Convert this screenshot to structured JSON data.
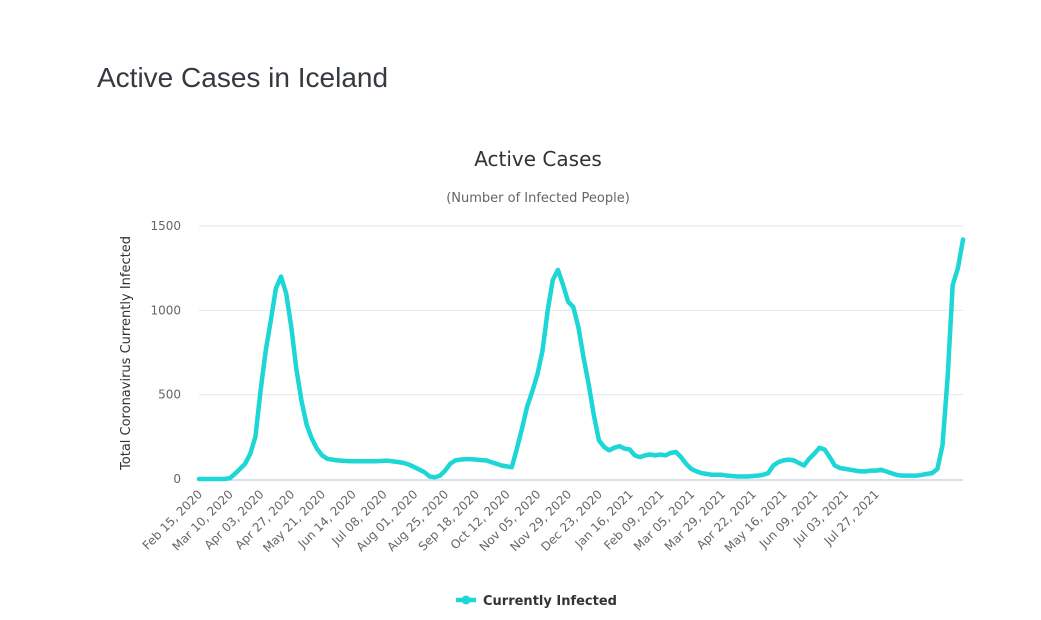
{
  "page": {
    "title": "Active Cases in Iceland"
  },
  "colors": {
    "series": "#1dd6d6",
    "grid": "#e6e6e6",
    "axis": "#ccd6eb",
    "title": "#343a40"
  },
  "chart_data": {
    "type": "line",
    "title": "Active Cases",
    "subtitle": "(Number of Infected People)",
    "xlabel": "",
    "ylabel": "Total Coronavirus Currently Infected",
    "ylim": [
      0,
      1500
    ],
    "yticks": [
      0,
      500,
      1000,
      1500
    ],
    "grid": true,
    "legend_position": "bottom",
    "x_start": "2020-02-15",
    "x_step_days": 4,
    "xtick_labels": [
      "Feb 15, 2020",
      "Mar 10, 2020",
      "Apr 03, 2020",
      "Apr 27, 2020",
      "May 21, 2020",
      "Jun 14, 2020",
      "Jul 08, 2020",
      "Aug 01, 2020",
      "Aug 25, 2020",
      "Sep 18, 2020",
      "Oct 12, 2020",
      "Nov 05, 2020",
      "Nov 29, 2020",
      "Dec 23, 2020",
      "Jan 16, 2021",
      "Feb 09, 2021",
      "Mar 05, 2021",
      "Mar 29, 2021",
      "Apr 22, 2021",
      "May 16, 2021",
      "Jun 09, 2021",
      "Jul 03, 2021",
      "Jul 27, 2021"
    ],
    "xtick_step_days": 24,
    "series": [
      {
        "name": "Currently Infected",
        "values": [
          0,
          0,
          0,
          0,
          0,
          0,
          5,
          30,
          60,
          90,
          150,
          250,
          520,
          760,
          940,
          1130,
          1200,
          1100,
          900,
          650,
          460,
          320,
          240,
          180,
          140,
          120,
          115,
          110,
          108,
          106,
          105,
          105,
          105,
          105,
          105,
          106,
          108,
          108,
          104,
          100,
          95,
          85,
          70,
          55,
          40,
          15,
          10,
          20,
          50,
          90,
          110,
          115,
          118,
          118,
          115,
          112,
          110,
          100,
          90,
          80,
          75,
          70,
          180,
          300,
          430,
          520,
          620,
          760,
          1000,
          1180,
          1240,
          1150,
          1050,
          1020,
          900,
          720,
          560,
          380,
          230,
          190,
          170,
          185,
          195,
          180,
          175,
          140,
          130,
          140,
          145,
          140,
          145,
          140,
          155,
          160,
          130,
          90,
          60,
          45,
          35,
          30,
          25,
          25,
          25,
          20,
          18,
          15,
          15,
          15,
          18,
          20,
          25,
          35,
          80,
          100,
          110,
          115,
          110,
          95,
          80,
          120,
          150,
          185,
          175,
          130,
          80,
          65,
          60,
          55,
          50,
          45,
          45,
          50,
          50,
          55,
          45,
          35,
          25,
          20,
          20,
          20,
          20,
          25,
          30,
          35,
          60,
          200,
          600,
          1150,
          1250,
          1420
        ]
      }
    ]
  }
}
